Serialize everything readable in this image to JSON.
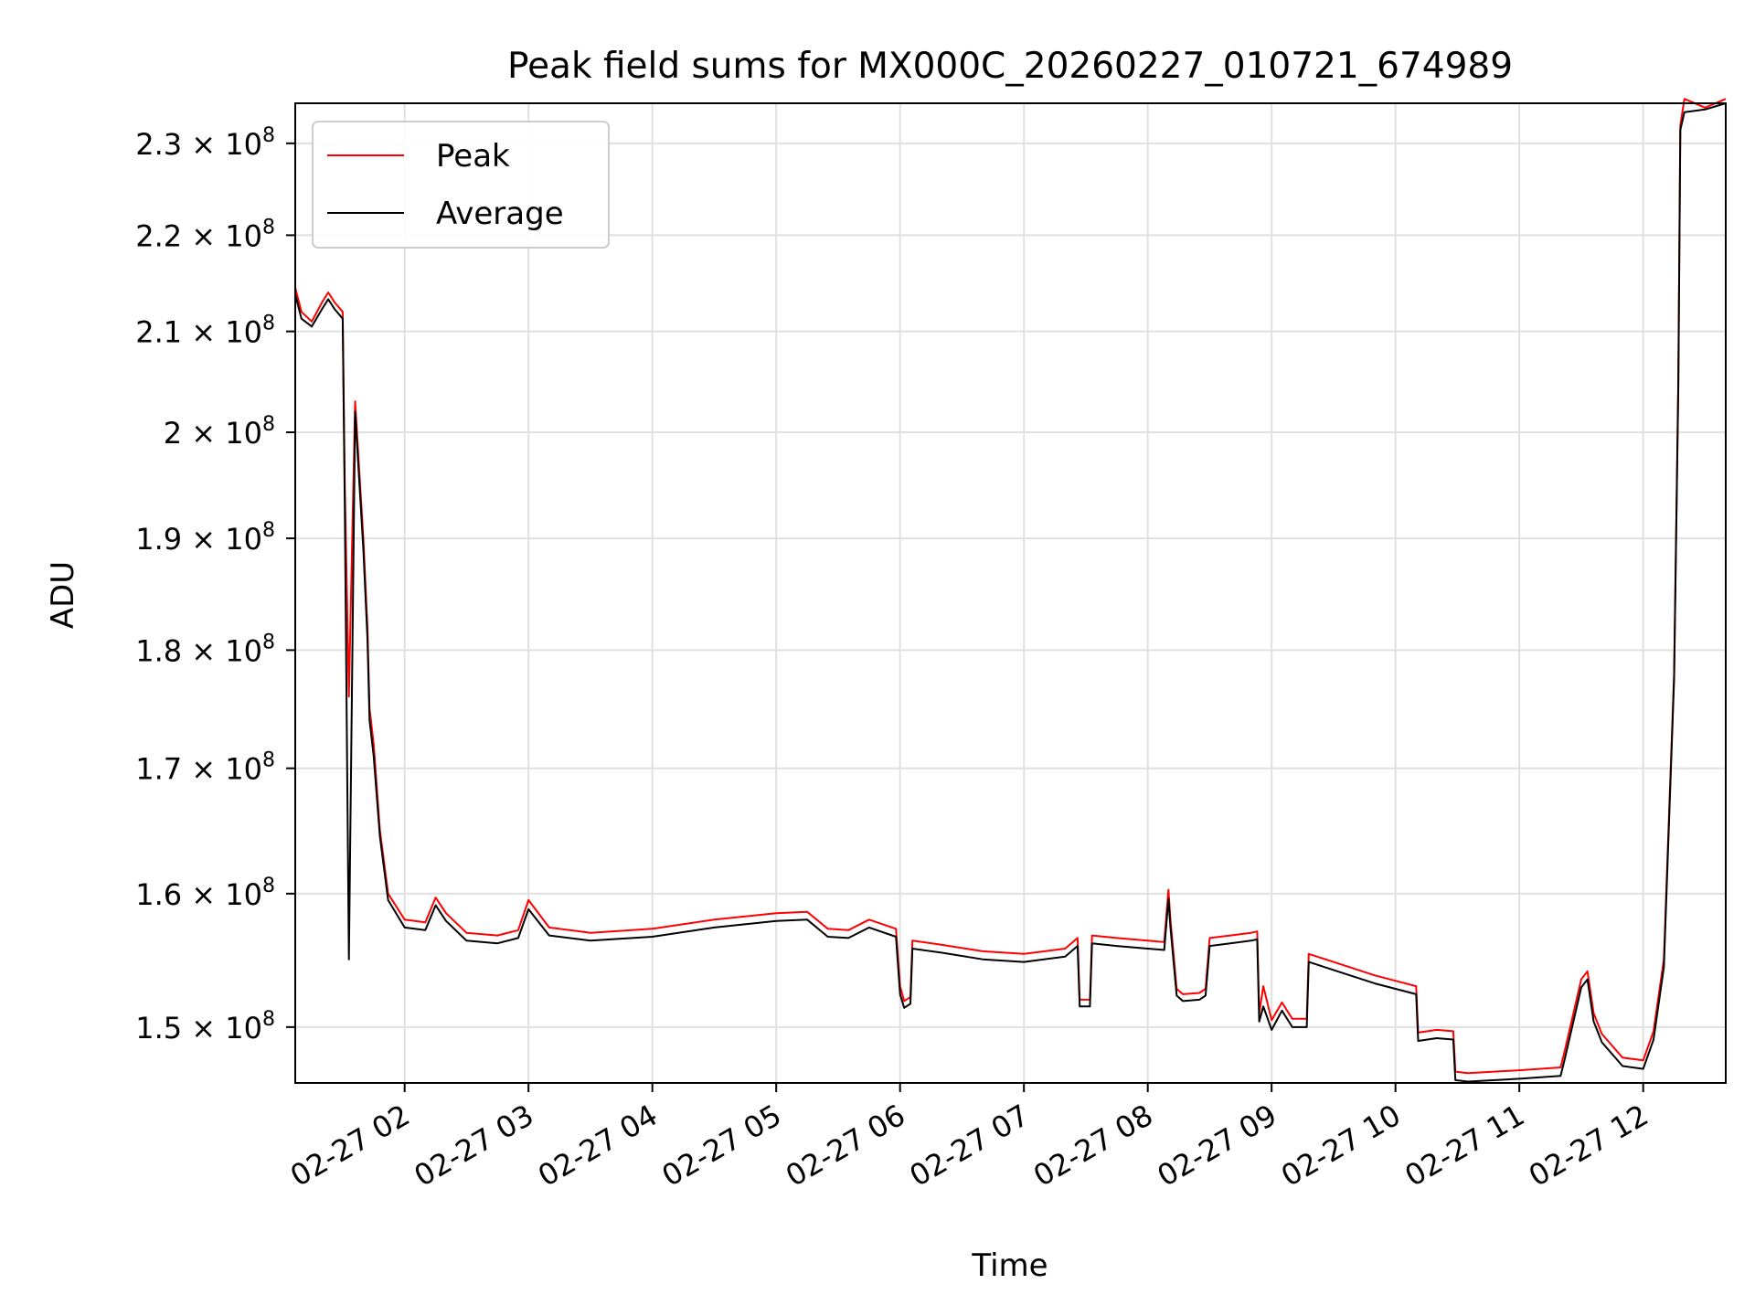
{
  "chart_data": {
    "type": "line",
    "title": "Peak field sums for MX000C_20260227_010721_674989",
    "xlabel": "Time",
    "ylabel": "ADU",
    "y_scale": "log",
    "xlim": [
      "2026-02-27 01:07",
      "2026-02-27 12:40"
    ],
    "ylim": [
      146000000,
      234500000
    ],
    "grid": true,
    "legend_position": "upper-left",
    "x_ticks": [
      "2026-02-27 02:00",
      "2026-02-27 03:00",
      "2026-02-27 04:00",
      "2026-02-27 05:00",
      "2026-02-27 06:00",
      "2026-02-27 07:00",
      "2026-02-27 08:00",
      "2026-02-27 09:00",
      "2026-02-27 10:00",
      "2026-02-27 11:00",
      "2026-02-27 12:00"
    ],
    "x_tick_labels": [
      "02-27 02",
      "02-27 03",
      "02-27 04",
      "02-27 05",
      "02-27 06",
      "02-27 07",
      "02-27 08",
      "02-27 09",
      "02-27 10",
      "02-27 11",
      "02-27 12"
    ],
    "y_ticks": [
      150000000,
      160000000,
      170000000,
      180000000,
      190000000,
      200000000,
      210000000,
      220000000,
      230000000
    ],
    "y_tick_labels": [
      {
        "mantissa": "1.5",
        "exp": "8"
      },
      {
        "mantissa": "1.6",
        "exp": "8"
      },
      {
        "mantissa": "1.7",
        "exp": "8"
      },
      {
        "mantissa": "1.8",
        "exp": "8"
      },
      {
        "mantissa": "1.9",
        "exp": "8"
      },
      {
        "mantissa": "2",
        "exp": "8"
      },
      {
        "mantissa": "2.1",
        "exp": "8"
      },
      {
        "mantissa": "2.2",
        "exp": "8"
      },
      {
        "mantissa": "2.3",
        "exp": "8"
      }
    ],
    "series": [
      {
        "name": "Peak",
        "color": "#ff0000",
        "x": [
          "2026-02-27 01:07",
          "2026-02-27 01:10",
          "2026-02-27 01:15",
          "2026-02-27 01:20",
          "2026-02-27 01:23",
          "2026-02-27 01:26",
          "2026-02-27 01:30",
          "2026-02-27 01:31",
          "2026-02-27 01:33",
          "2026-02-27 01:36",
          "2026-02-27 01:40",
          "2026-02-27 01:42",
          "2026-02-27 01:43",
          "2026-02-27 01:45",
          "2026-02-27 01:48",
          "2026-02-27 01:52",
          "2026-02-27 02:00",
          "2026-02-27 02:10",
          "2026-02-27 02:15",
          "2026-02-27 02:20",
          "2026-02-27 02:30",
          "2026-02-27 02:45",
          "2026-02-27 02:55",
          "2026-02-27 03:00",
          "2026-02-27 03:10",
          "2026-02-27 03:30",
          "2026-02-27 04:00",
          "2026-02-27 04:30",
          "2026-02-27 05:00",
          "2026-02-27 05:15",
          "2026-02-27 05:25",
          "2026-02-27 05:35",
          "2026-02-27 05:45",
          "2026-02-27 05:58",
          "2026-02-27 06:00",
          "2026-02-27 06:02",
          "2026-02-27 06:05",
          "2026-02-27 06:06",
          "2026-02-27 06:20",
          "2026-02-27 06:40",
          "2026-02-27 07:00",
          "2026-02-27 07:20",
          "2026-02-27 07:26",
          "2026-02-27 07:27",
          "2026-02-27 07:32",
          "2026-02-27 07:33",
          "2026-02-27 07:45",
          "2026-02-27 08:00",
          "2026-02-27 08:08",
          "2026-02-27 08:10",
          "2026-02-27 08:11",
          "2026-02-27 08:14",
          "2026-02-27 08:17",
          "2026-02-27 08:25",
          "2026-02-27 08:28",
          "2026-02-27 08:30",
          "2026-02-27 08:40",
          "2026-02-27 08:50",
          "2026-02-27 08:53",
          "2026-02-27 08:54",
          "2026-02-27 08:56",
          "2026-02-27 09:00",
          "2026-02-27 09:05",
          "2026-02-27 09:10",
          "2026-02-27 09:17",
          "2026-02-27 09:18",
          "2026-02-27 09:30",
          "2026-02-27 09:50",
          "2026-02-27 10:10",
          "2026-02-27 10:11",
          "2026-02-27 10:20",
          "2026-02-27 10:28",
          "2026-02-27 10:29",
          "2026-02-27 10:35",
          "2026-02-27 11:00",
          "2026-02-27 11:20",
          "2026-02-27 11:22",
          "2026-02-27 11:30",
          "2026-02-27 11:33",
          "2026-02-27 11:36",
          "2026-02-27 11:40",
          "2026-02-27 11:50",
          "2026-02-27 12:00",
          "2026-02-27 12:05",
          "2026-02-27 12:10",
          "2026-02-27 12:15",
          "2026-02-27 12:17",
          "2026-02-27 12:18",
          "2026-02-27 12:20",
          "2026-02-27 12:30",
          "2026-02-27 12:40"
        ],
        "values": [
          214500000,
          212000000,
          211000000,
          213000000,
          214000000,
          213000000,
          212000000,
          195000000,
          176000000,
          203000000,
          190000000,
          182000000,
          175000000,
          172000000,
          165000000,
          160000000,
          158000000,
          157800000,
          159700000,
          158500000,
          157000000,
          156800000,
          157200000,
          159500000,
          157400000,
          157000000,
          157300000,
          158000000,
          158500000,
          158600000,
          157300000,
          157200000,
          158000000,
          157300000,
          153000000,
          151900000,
          152200000,
          156400000,
          156100000,
          155600000,
          155400000,
          155800000,
          156600000,
          152000000,
          152000000,
          156800000,
          156600000,
          156400000,
          156300000,
          160300000,
          158000000,
          152800000,
          152400000,
          152500000,
          152800000,
          156600000,
          156800000,
          157000000,
          157100000,
          151000000,
          153000000,
          150500000,
          151800000,
          150600000,
          150600000,
          155400000,
          154800000,
          153800000,
          153000000,
          149600000,
          149800000,
          149700000,
          146800000,
          146700000,
          146900000,
          147100000,
          148300000,
          153500000,
          154100000,
          151000000,
          149500000,
          147800000,
          147600000,
          149700000,
          155000000,
          178000000,
          205000000,
          232000000,
          235000000,
          234000000,
          235000000
        ]
      },
      {
        "name": "Average",
        "color": "#000000",
        "x": [
          "2026-02-27 01:07",
          "2026-02-27 01:10",
          "2026-02-27 01:15",
          "2026-02-27 01:20",
          "2026-02-27 01:23",
          "2026-02-27 01:26",
          "2026-02-27 01:30",
          "2026-02-27 01:31",
          "2026-02-27 01:33",
          "2026-02-27 01:36",
          "2026-02-27 01:40",
          "2026-02-27 01:42",
          "2026-02-27 01:43",
          "2026-02-27 01:45",
          "2026-02-27 01:48",
          "2026-02-27 01:52",
          "2026-02-27 02:00",
          "2026-02-27 02:10",
          "2026-02-27 02:15",
          "2026-02-27 02:20",
          "2026-02-27 02:30",
          "2026-02-27 02:45",
          "2026-02-27 02:55",
          "2026-02-27 03:00",
          "2026-02-27 03:10",
          "2026-02-27 03:30",
          "2026-02-27 04:00",
          "2026-02-27 04:30",
          "2026-02-27 05:00",
          "2026-02-27 05:15",
          "2026-02-27 05:25",
          "2026-02-27 05:35",
          "2026-02-27 05:45",
          "2026-02-27 05:58",
          "2026-02-27 06:00",
          "2026-02-27 06:02",
          "2026-02-27 06:05",
          "2026-02-27 06:06",
          "2026-02-27 06:20",
          "2026-02-27 06:40",
          "2026-02-27 07:00",
          "2026-02-27 07:20",
          "2026-02-27 07:26",
          "2026-02-27 07:27",
          "2026-02-27 07:32",
          "2026-02-27 07:33",
          "2026-02-27 07:45",
          "2026-02-27 08:00",
          "2026-02-27 08:08",
          "2026-02-27 08:10",
          "2026-02-27 08:11",
          "2026-02-27 08:14",
          "2026-02-27 08:17",
          "2026-02-27 08:25",
          "2026-02-27 08:28",
          "2026-02-27 08:30",
          "2026-02-27 08:40",
          "2026-02-27 08:50",
          "2026-02-27 08:53",
          "2026-02-27 08:54",
          "2026-02-27 08:56",
          "2026-02-27 09:00",
          "2026-02-27 09:05",
          "2026-02-27 09:10",
          "2026-02-27 09:17",
          "2026-02-27 09:18",
          "2026-02-27 09:30",
          "2026-02-27 09:50",
          "2026-02-27 10:10",
          "2026-02-27 10:11",
          "2026-02-27 10:20",
          "2026-02-27 10:28",
          "2026-02-27 10:29",
          "2026-02-27 10:35",
          "2026-02-27 11:00",
          "2026-02-27 11:20",
          "2026-02-27 11:22",
          "2026-02-27 11:30",
          "2026-02-27 11:33",
          "2026-02-27 11:36",
          "2026-02-27 11:40",
          "2026-02-27 11:50",
          "2026-02-27 12:00",
          "2026-02-27 12:05",
          "2026-02-27 12:10",
          "2026-02-27 12:15",
          "2026-02-27 12:17",
          "2026-02-27 12:18",
          "2026-02-27 12:20",
          "2026-02-27 12:30",
          "2026-02-27 12:40"
        ],
        "values": [
          213800000,
          211300000,
          210500000,
          212300000,
          213300000,
          212300000,
          211300000,
          193000000,
          155000000,
          202000000,
          189000000,
          181000000,
          174000000,
          171000000,
          164500000,
          159500000,
          157400000,
          157200000,
          159100000,
          157900000,
          156400000,
          156200000,
          156600000,
          158800000,
          156800000,
          156400000,
          156700000,
          157400000,
          157900000,
          158000000,
          156700000,
          156600000,
          157400000,
          156700000,
          152400000,
          151400000,
          151700000,
          155800000,
          155500000,
          155000000,
          154800000,
          155200000,
          156000000,
          151500000,
          151500000,
          156200000,
          156000000,
          155800000,
          155700000,
          159600000,
          157400000,
          152300000,
          151900000,
          152000000,
          152300000,
          156000000,
          156200000,
          156400000,
          156500000,
          150400000,
          151500000,
          149800000,
          151200000,
          150000000,
          150000000,
          154800000,
          154200000,
          153200000,
          152400000,
          149000000,
          149200000,
          149100000,
          146200000,
          146100000,
          146300000,
          146500000,
          147700000,
          152900000,
          153500000,
          150400000,
          148900000,
          147200000,
          147000000,
          149100000,
          154400000,
          177500000,
          204500000,
          231500000,
          233500000,
          233800000,
          234500000
        ]
      }
    ]
  }
}
